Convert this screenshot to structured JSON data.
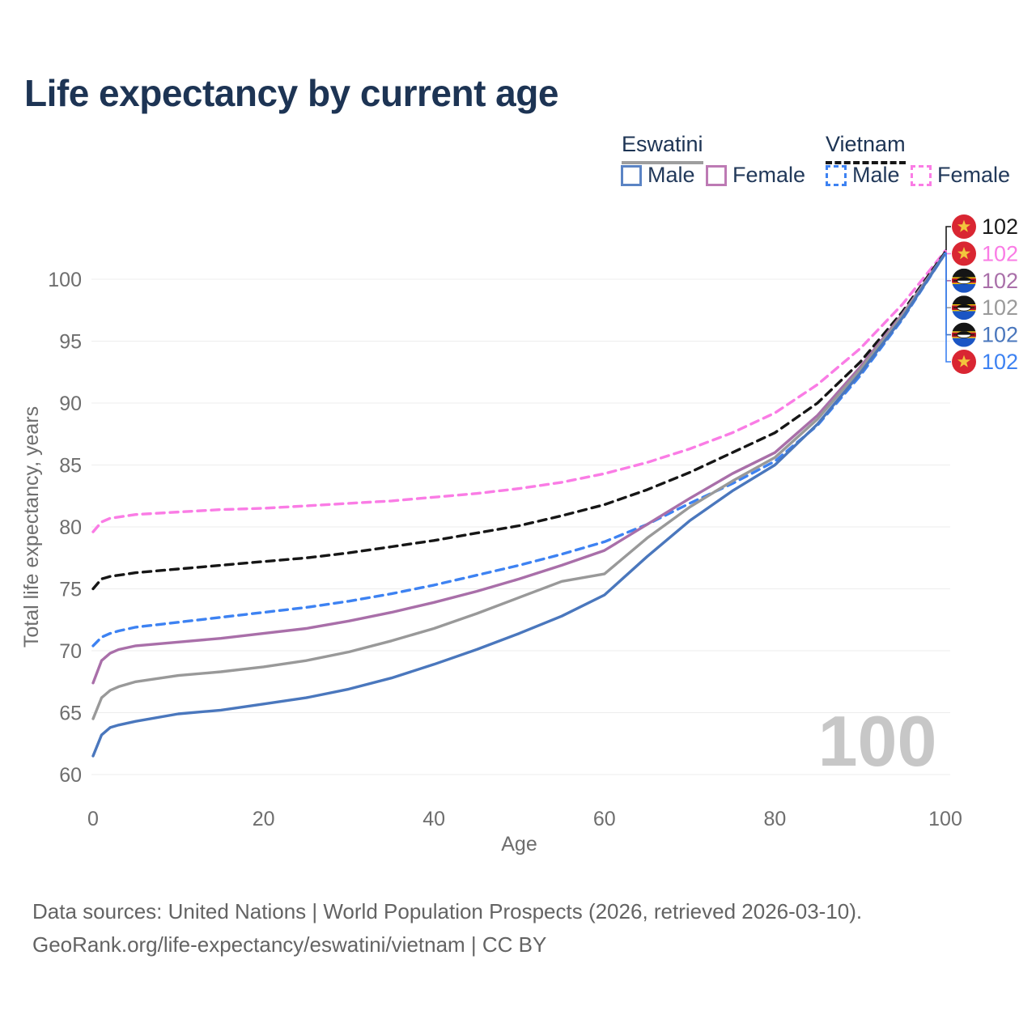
{
  "title": "Life expectancy by current age",
  "legend": {
    "groups": [
      {
        "name": "Eswatini",
        "line_style": "solid",
        "underline_color": "#9e9e9e",
        "items": [
          {
            "label": "Male",
            "color": "#5b84c4",
            "dashed": false
          },
          {
            "label": "Female",
            "color": "#bd7ab4",
            "dashed": false
          }
        ]
      },
      {
        "name": "Vietnam",
        "line_style": "dashed",
        "underline_color": "#161616",
        "items": [
          {
            "label": "Male",
            "color": "#3d82f2",
            "dashed": true
          },
          {
            "label": "Female",
            "color": "#fa7ce5",
            "dashed": true
          }
        ]
      }
    ]
  },
  "axes": {
    "x": {
      "label": "Age",
      "ticks": [
        0,
        20,
        40,
        60,
        80,
        100
      ],
      "range": [
        0,
        100
      ]
    },
    "y": {
      "label": "Total life expectancy, years",
      "ticks": [
        60,
        65,
        70,
        75,
        80,
        85,
        90,
        95,
        100
      ],
      "range": [
        58.5,
        103.5
      ],
      "grid": true
    }
  },
  "watermark_age": "100",
  "chart_data": {
    "type": "line",
    "x": [
      0,
      1,
      2,
      3,
      5,
      10,
      15,
      20,
      25,
      30,
      35,
      40,
      45,
      50,
      55,
      60,
      65,
      70,
      75,
      80,
      85,
      90,
      95,
      100
    ],
    "xlabel": "Age",
    "ylabel": "Total life expectancy, years",
    "ylim": [
      60,
      100
    ],
    "legend_position": "top-right",
    "series": [
      {
        "id": "vietnam-female",
        "name": "Vietnam Female",
        "color": "#fa7ce5",
        "dashed": true,
        "values": [
          79.6,
          80.4,
          80.7,
          80.8,
          81.0,
          81.2,
          81.4,
          81.5,
          81.7,
          81.9,
          82.1,
          82.4,
          82.7,
          83.1,
          83.6,
          84.3,
          85.2,
          86.3,
          87.6,
          89.2,
          91.5,
          94.4,
          98.0,
          102.3
        ]
      },
      {
        "id": "vietnam-total",
        "name": "Vietnam",
        "color": "#161616",
        "dashed": true,
        "values": [
          75.0,
          75.8,
          76.0,
          76.1,
          76.3,
          76.6,
          76.9,
          77.2,
          77.5,
          77.9,
          78.4,
          78.9,
          79.5,
          80.1,
          80.9,
          81.8,
          83.0,
          84.4,
          86.0,
          87.6,
          90.0,
          93.3,
          97.4,
          102.2
        ]
      },
      {
        "id": "vietnam-male",
        "name": "Vietnam Male",
        "color": "#3d82f2",
        "dashed": true,
        "values": [
          70.4,
          71.1,
          71.4,
          71.6,
          71.9,
          72.3,
          72.7,
          73.1,
          73.5,
          74.0,
          74.6,
          75.3,
          76.1,
          76.9,
          77.8,
          78.8,
          80.2,
          81.9,
          83.5,
          85.3,
          88.2,
          92.2,
          96.8,
          102.1
        ]
      },
      {
        "id": "eswatini-female",
        "name": "Eswatini Female",
        "color": "#a96fa9",
        "dashed": false,
        "values": [
          67.4,
          69.2,
          69.8,
          70.1,
          70.4,
          70.7,
          71.0,
          71.4,
          71.8,
          72.4,
          73.1,
          73.9,
          74.8,
          75.8,
          76.9,
          78.1,
          80.2,
          82.3,
          84.3,
          86.0,
          89.0,
          92.9,
          97.2,
          102.1
        ]
      },
      {
        "id": "eswatini-total",
        "name": "Eswatini",
        "color": "#999999",
        "dashed": false,
        "values": [
          64.5,
          66.2,
          66.8,
          67.1,
          67.5,
          68.0,
          68.3,
          68.7,
          69.2,
          69.9,
          70.8,
          71.8,
          73.0,
          74.3,
          75.6,
          76.2,
          79.1,
          81.6,
          83.7,
          85.6,
          88.7,
          92.7,
          97.1,
          102.1
        ]
      },
      {
        "id": "eswatini-male",
        "name": "Eswatini Male",
        "color": "#4a77bd",
        "dashed": false,
        "values": [
          61.5,
          63.2,
          63.8,
          64.0,
          64.3,
          64.9,
          65.2,
          65.7,
          66.2,
          66.9,
          67.8,
          68.9,
          70.1,
          71.4,
          72.8,
          74.5,
          77.6,
          80.5,
          82.9,
          85.0,
          88.3,
          92.4,
          96.9,
          102.1
        ]
      }
    ]
  },
  "end_labels": [
    {
      "value": "102",
      "flag": "vietnam",
      "color": "#1a1a1a",
      "series": "vietnam-total"
    },
    {
      "value": "102",
      "flag": "vietnam",
      "color": "#fa7ce5",
      "series": "vietnam-female"
    },
    {
      "value": "102",
      "flag": "eswatini",
      "color": "#a96fa9",
      "series": "eswatini-female"
    },
    {
      "value": "102",
      "flag": "eswatini",
      "color": "#9a9a9a",
      "series": "eswatini-total"
    },
    {
      "value": "102",
      "flag": "eswatini",
      "color": "#4a77bd",
      "series": "eswatini-male"
    },
    {
      "value": "102",
      "flag": "vietnam",
      "color": "#3d82f2",
      "series": "vietnam-male"
    }
  ],
  "footer": {
    "line1": "Data sources: United Nations | World Population Prospects (2026, retrieved 2026-03-10).",
    "line2": "GeoRank.org/life-expectancy/eswatini/vietnam | CC BY"
  }
}
